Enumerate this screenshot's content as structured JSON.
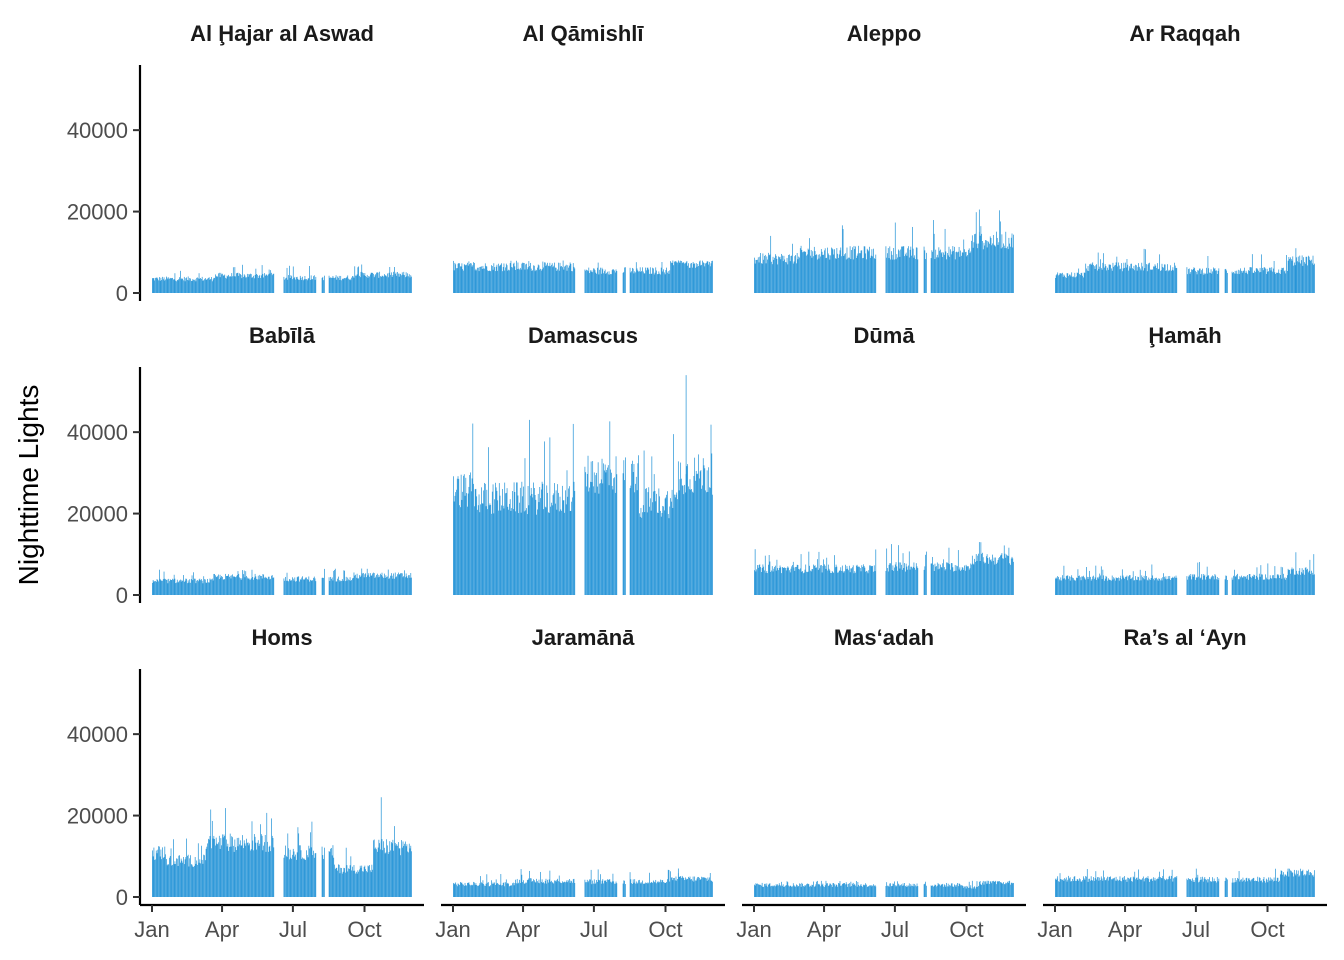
{
  "chart_data": {
    "type": "bar",
    "ylabel": "Nighttime Lights",
    "ylim": [
      0,
      56000
    ],
    "y_ticks": [
      0,
      20000,
      40000
    ],
    "y_tick_labels": [
      "0",
      "20000",
      "40000"
    ],
    "x_ticks": [
      "Jan",
      "Apr",
      "Jul",
      "Oct"
    ],
    "x_tick_day_of_year": [
      1,
      91,
      182,
      274
    ],
    "x_range_days": [
      1,
      335
    ],
    "bar_color": "#1f91d6",
    "gap_day_ranges": [
      [
        159,
        170
      ],
      [
        212,
        219
      ],
      [
        223,
        228
      ]
    ],
    "facet_layout": {
      "rows": 3,
      "cols": 4
    },
    "panels": [
      {
        "name": "Al Ḩajar al Aswad",
        "segments": [
          {
            "from_day": 1,
            "to_day": 80,
            "level": 3500
          },
          {
            "from_day": 80,
            "to_day": 158,
            "level": 4300
          },
          {
            "from_day": 170,
            "to_day": 260,
            "level": 3800
          },
          {
            "from_day": 260,
            "to_day": 335,
            "level": 4500
          }
        ],
        "peak": 7000
      },
      {
        "name": "Al Qāmishlī",
        "segments": [
          {
            "from_day": 1,
            "to_day": 158,
            "level": 6500
          },
          {
            "from_day": 170,
            "to_day": 280,
            "level": 5500
          },
          {
            "from_day": 280,
            "to_day": 335,
            "level": 7500
          }
        ],
        "peak": 8000
      },
      {
        "name": "Aleppo",
        "segments": [
          {
            "from_day": 1,
            "to_day": 60,
            "level": 8500
          },
          {
            "from_day": 60,
            "to_day": 158,
            "level": 10000
          },
          {
            "from_day": 170,
            "to_day": 280,
            "level": 10000
          },
          {
            "from_day": 280,
            "to_day": 335,
            "level": 13000
          }
        ],
        "peak": 20500
      },
      {
        "name": "Ar Raqqah",
        "segments": [
          {
            "from_day": 1,
            "to_day": 40,
            "level": 4500
          },
          {
            "from_day": 40,
            "to_day": 158,
            "level": 6500
          },
          {
            "from_day": 170,
            "to_day": 300,
            "level": 5500
          },
          {
            "from_day": 300,
            "to_day": 335,
            "level": 8000
          }
        ],
        "peak": 11000
      },
      {
        "name": "Babīlā",
        "segments": [
          {
            "from_day": 1,
            "to_day": 80,
            "level": 3500
          },
          {
            "from_day": 80,
            "to_day": 158,
            "level": 4500
          },
          {
            "from_day": 170,
            "to_day": 260,
            "level": 4000
          },
          {
            "from_day": 260,
            "to_day": 335,
            "level": 4800
          }
        ],
        "peak": 6500
      },
      {
        "name": "Damascus",
        "segments": [
          {
            "from_day": 1,
            "to_day": 30,
            "level": 26000
          },
          {
            "from_day": 30,
            "to_day": 158,
            "level": 24000
          },
          {
            "from_day": 170,
            "to_day": 240,
            "level": 30000
          },
          {
            "from_day": 240,
            "to_day": 290,
            "level": 23000
          },
          {
            "from_day": 290,
            "to_day": 335,
            "level": 30000
          }
        ],
        "peak": 54000
      },
      {
        "name": "Dūmā",
        "segments": [
          {
            "from_day": 1,
            "to_day": 158,
            "level": 6500
          },
          {
            "from_day": 170,
            "to_day": 280,
            "level": 7000
          },
          {
            "from_day": 280,
            "to_day": 335,
            "level": 9000
          }
        ],
        "peak": 13000
      },
      {
        "name": "Ḩamāh",
        "segments": [
          {
            "from_day": 1,
            "to_day": 158,
            "level": 4200
          },
          {
            "from_day": 170,
            "to_day": 300,
            "level": 4500
          },
          {
            "from_day": 300,
            "to_day": 335,
            "level": 6000
          }
        ],
        "peak": 10500
      },
      {
        "name": "Homs",
        "segments": [
          {
            "from_day": 1,
            "to_day": 20,
            "level": 11000
          },
          {
            "from_day": 20,
            "to_day": 70,
            "level": 9000
          },
          {
            "from_day": 70,
            "to_day": 158,
            "level": 13500
          },
          {
            "from_day": 170,
            "to_day": 235,
            "level": 11000
          },
          {
            "from_day": 235,
            "to_day": 285,
            "level": 7000
          },
          {
            "from_day": 285,
            "to_day": 335,
            "level": 12500
          }
        ],
        "peak": 24500
      },
      {
        "name": "Jaramānā",
        "segments": [
          {
            "from_day": 1,
            "to_day": 80,
            "level": 3200
          },
          {
            "from_day": 80,
            "to_day": 158,
            "level": 4000
          },
          {
            "from_day": 170,
            "to_day": 280,
            "level": 3800
          },
          {
            "from_day": 280,
            "to_day": 335,
            "level": 4500
          }
        ],
        "peak": 7000
      },
      {
        "name": "Mas‘adah",
        "segments": [
          {
            "from_day": 1,
            "to_day": 158,
            "level": 3000
          },
          {
            "from_day": 170,
            "to_day": 270,
            "level": 3000
          },
          {
            "from_day": 270,
            "to_day": 290,
            "level": 2500
          },
          {
            "from_day": 290,
            "to_day": 335,
            "level": 3500
          }
        ],
        "peak": 4000
      },
      {
        "name": "Ra’s al ‘Ayn",
        "segments": [
          {
            "from_day": 1,
            "to_day": 158,
            "level": 4500
          },
          {
            "from_day": 170,
            "to_day": 290,
            "level": 4300
          },
          {
            "from_day": 290,
            "to_day": 335,
            "level": 6000
          }
        ],
        "peak": 7000
      }
    ]
  }
}
